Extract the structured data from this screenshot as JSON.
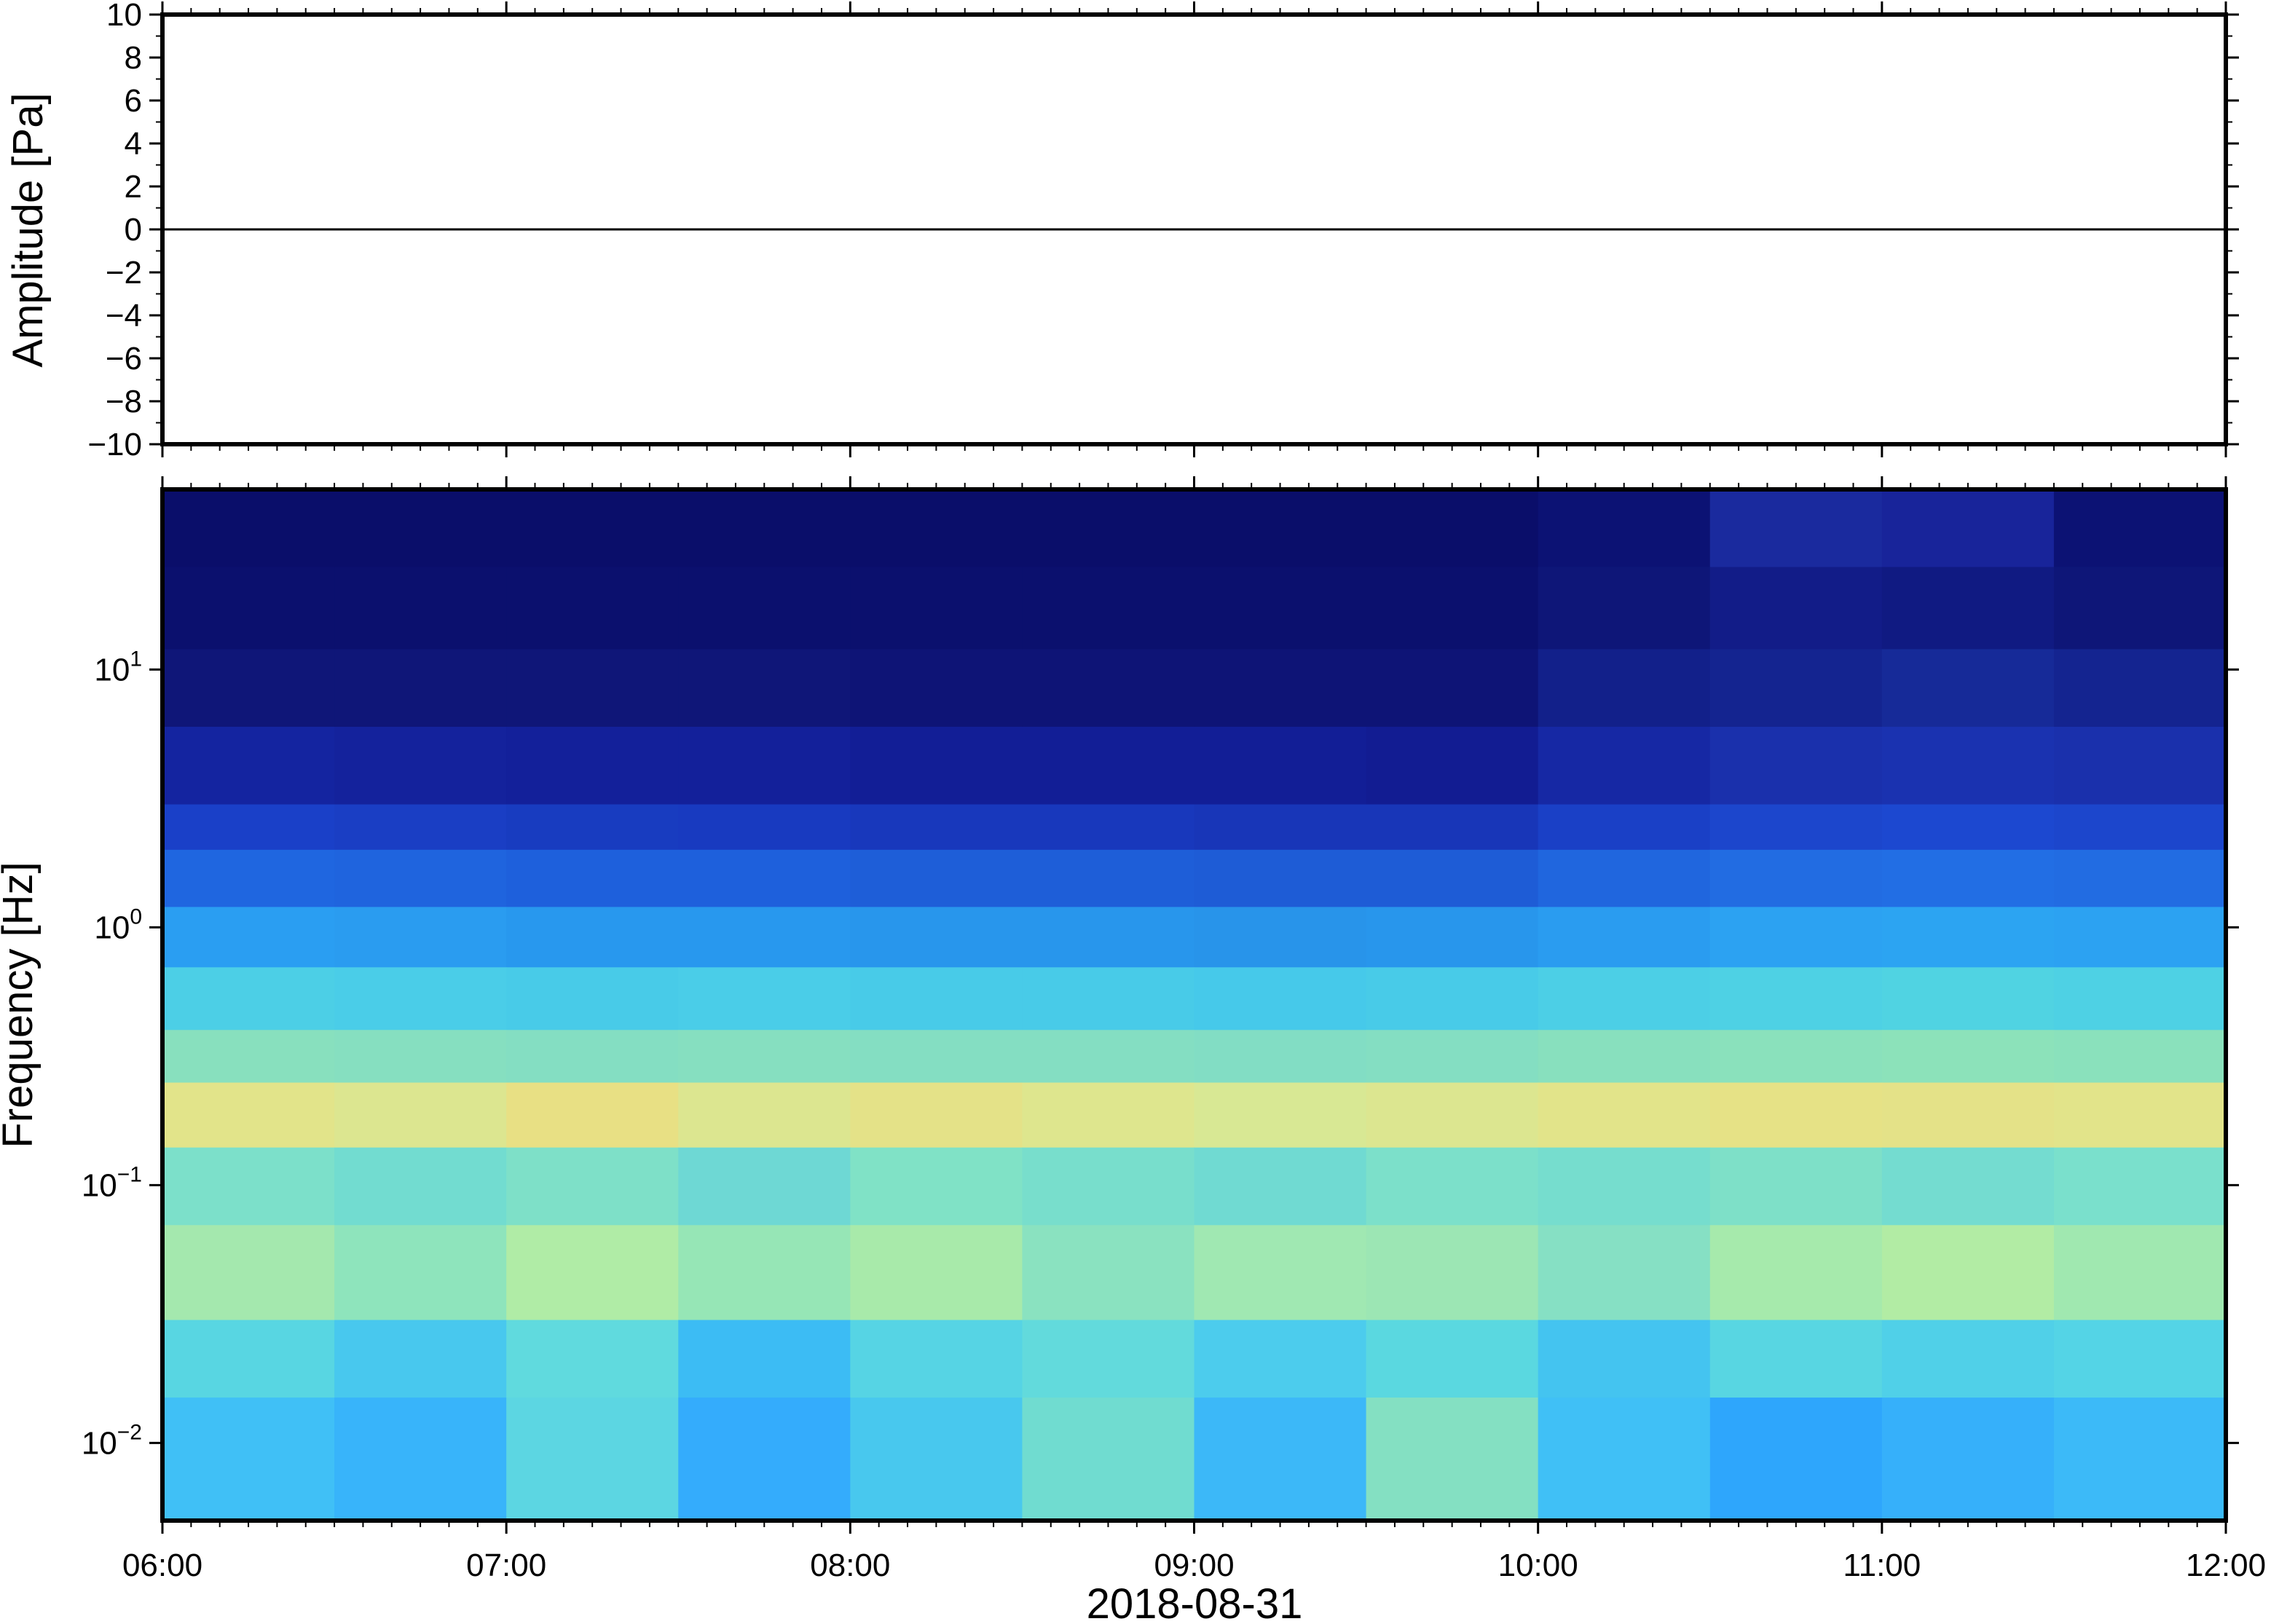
{
  "chart_data": [
    {
      "type": "line",
      "ylabel": "Amplitude [Pa]",
      "x": [
        6,
        7,
        8,
        9,
        10,
        11,
        12
      ],
      "values": [
        0,
        0,
        0,
        0,
        0,
        0,
        0
      ],
      "color": "#000000",
      "xlim": [
        6,
        12
      ],
      "ylim": [
        -10,
        10
      ],
      "yticks": [
        10,
        8,
        6,
        4,
        2,
        0,
        {
          "value": -2,
          "label": "−2"
        },
        {
          "value": -4,
          "label": "−4"
        },
        {
          "value": -6,
          "label": "−6"
        },
        {
          "value": -8,
          "label": "−8"
        },
        {
          "value": -10,
          "label": "−10"
        }
      ]
    },
    {
      "type": "heatmap",
      "ylabel": "Frequency [Hz]",
      "xlabel": "2018-08-31",
      "log_y": true,
      "xlim": [
        6,
        12
      ],
      "ylim": [
        0.005,
        50
      ],
      "xticks": [
        {
          "value": 6,
          "label": "06:00"
        },
        {
          "value": 7,
          "label": "07:00"
        },
        {
          "value": 8,
          "label": "08:00"
        },
        {
          "value": 9,
          "label": "09:00"
        },
        {
          "value": 10,
          "label": "10:00"
        },
        {
          "value": 11,
          "label": "11:00"
        },
        {
          "value": 12,
          "label": "12:00"
        }
      ],
      "yticks": [
        {
          "value": 0.01,
          "label": "10",
          "exponent": "−2"
        },
        {
          "value": 0.1,
          "label": "10",
          "exponent": "−1"
        },
        {
          "value": 1,
          "label": "10",
          "exponent": "0"
        },
        {
          "value": 10,
          "label": "10",
          "exponent": "1"
        }
      ],
      "x_edges": [
        6,
        6.5,
        7,
        7.5,
        8,
        8.5,
        9,
        9.5,
        10,
        10.5,
        11,
        11.5,
        12
      ],
      "y_edges": [
        50,
        25,
        12,
        6,
        3,
        2,
        1.2,
        0.7,
        0.4,
        0.25,
        0.14,
        0.07,
        0.03,
        0.015,
        0.005
      ],
      "colors": [
        [
          "#0a0e6a",
          "#0a0e6a",
          "#0a0e6a",
          "#0a0e6a",
          "#0a0e6a",
          "#0a0e6a",
          "#0a0e6a",
          "#0a0e6a",
          "#0c1274",
          "#1a2a9e",
          "#18249a",
          "#0c1274"
        ],
        [
          "#0b106e",
          "#0b106e",
          "#0b106e",
          "#0b106e",
          "#0b106e",
          "#0b106e",
          "#0b106e",
          "#0b106e",
          "#0e1678",
          "#121c88",
          "#101a82",
          "#0e1678"
        ],
        [
          "#0f1678",
          "#0f1678",
          "#0f1678",
          "#0f1678",
          "#0e1476",
          "#0e1476",
          "#0e1476",
          "#0e1476",
          "#12208a",
          "#142490",
          "#162a98",
          "#142490"
        ],
        [
          "#1424a0",
          "#14229c",
          "#13209a",
          "#13209a",
          "#121e96",
          "#121e96",
          "#121e96",
          "#121c92",
          "#1628a4",
          "#1a30ac",
          "#1a32b0",
          "#1a30ac"
        ],
        [
          "#1a40c8",
          "#1a3ec4",
          "#183cc0",
          "#183ac0",
          "#1838bc",
          "#1838bc",
          "#1836b8",
          "#1836b8",
          "#1a40c6",
          "#1c46cc",
          "#1c48d0",
          "#1c46cc"
        ],
        [
          "#1f66e0",
          "#1f64de",
          "#1e60dc",
          "#1e60dc",
          "#1e5ed8",
          "#1e5ed8",
          "#1e5cd6",
          "#1e5cd6",
          "#2066de",
          "#226ce2",
          "#226ee4",
          "#226ce2"
        ],
        [
          "#2a9ef2",
          "#2a9cf0",
          "#2898ee",
          "#2898ee",
          "#2896ec",
          "#2896ec",
          "#2894ea",
          "#2896ec",
          "#2a9cf0",
          "#2ca2f2",
          "#2ca4f2",
          "#2ca2f2"
        ],
        [
          "#4ccfe6",
          "#4acde8",
          "#48cbe8",
          "#4acde8",
          "#48cbe8",
          "#48cbe8",
          "#46c9ea",
          "#48cbe8",
          "#4ccfe6",
          "#4ed1e4",
          "#50d3e2",
          "#4ed1e4"
        ],
        [
          "#88e0be",
          "#86dfc0",
          "#84dec2",
          "#86dfc0",
          "#84dec2",
          "#84dec2",
          "#82ddc4",
          "#84dec2",
          "#88e0be",
          "#8ae1bc",
          "#8ce2ba",
          "#8ae1bc"
        ],
        [
          "#e2e48a",
          "#dce690",
          "#e8e084",
          "#dce690",
          "#e4e288",
          "#dee68e",
          "#d8e894",
          "#dce690",
          "#e2e48a",
          "#e6e286",
          "#e4e288",
          "#e2e48a"
        ],
        [
          "#7ce0ca",
          "#72dcd0",
          "#7ee0c8",
          "#6ed8d4",
          "#80e2c6",
          "#78decc",
          "#70dad2",
          "#7ce0ca",
          "#76ddce",
          "#7ee0c8",
          "#74dcd0",
          "#7ae0cc"
        ],
        [
          "#a4e8ae",
          "#8ee4bc",
          "#b0eca6",
          "#96e6b6",
          "#a8eaaa",
          "#8ae2c0",
          "#a0e8b2",
          "#9ce6b4",
          "#86e0c4",
          "#a6eaac",
          "#b2eca4",
          "#a0e8b0"
        ],
        [
          "#58d6e2",
          "#48c8ee",
          "#60dade",
          "#3cbcf4",
          "#56d4e4",
          "#62dadc",
          "#4ccced",
          "#5ad8e0",
          "#44c4f0",
          "#58d6e2",
          "#50d0e8",
          "#54d4e6"
        ],
        [
          "#40c0f6",
          "#38b4fa",
          "#5cd6e2",
          "#34acfc",
          "#48c8ee",
          "#70dcd0",
          "#3cb8f8",
          "#84e0c2",
          "#40c0f6",
          "#2ea6fc",
          "#36b0fa",
          "#3cbaf8"
        ]
      ]
    }
  ]
}
